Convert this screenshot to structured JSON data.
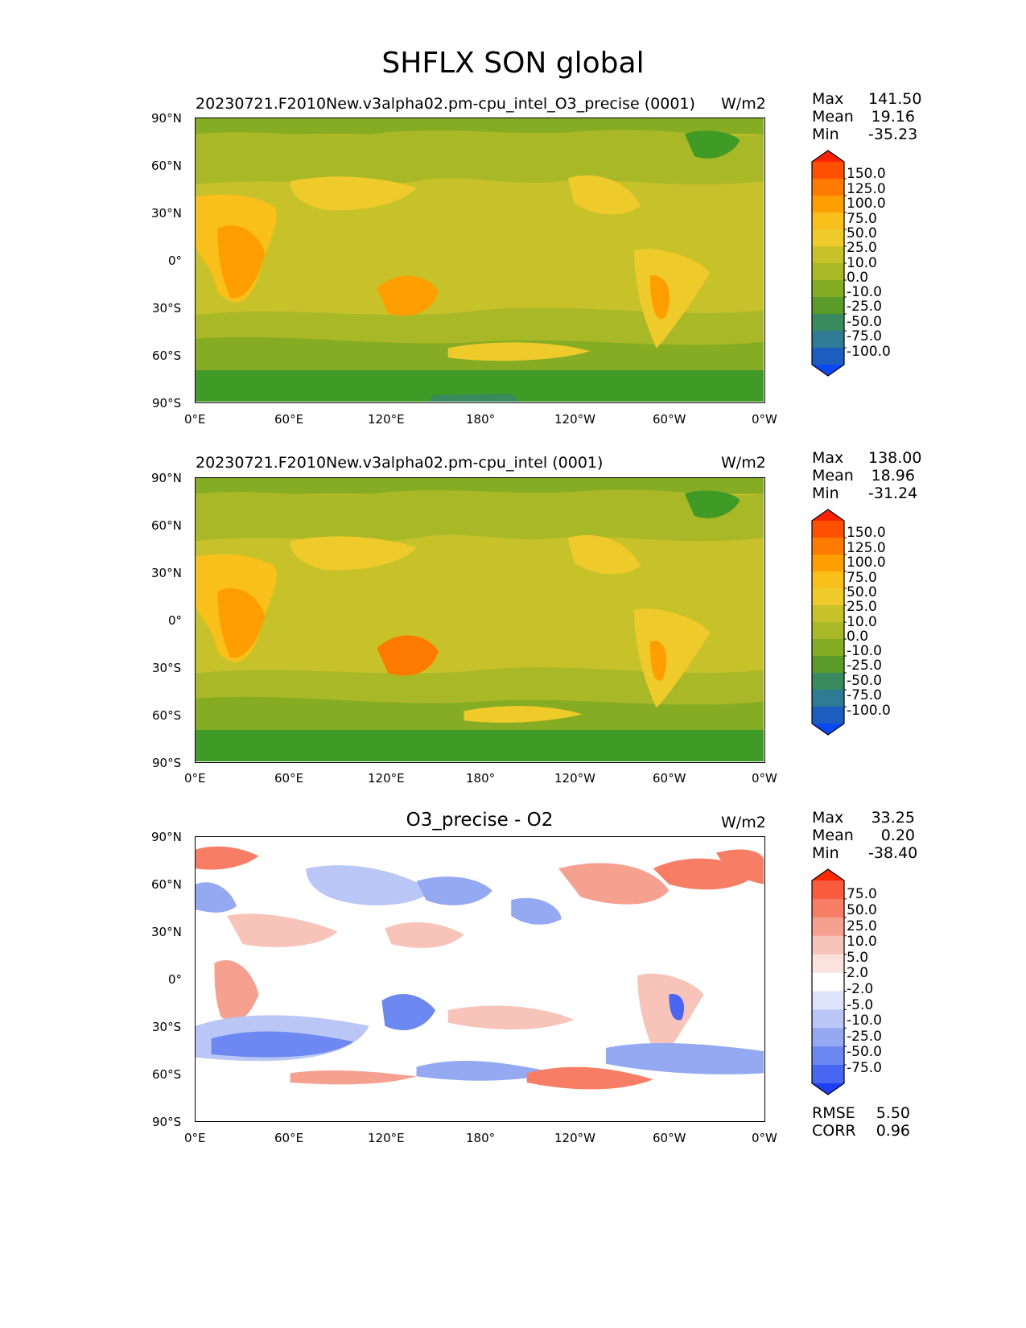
{
  "figure_title": "SHFLX SON global",
  "lat_ticks": [
    "90°N",
    "60°N",
    "30°N",
    "0°",
    "30°S",
    "60°S",
    "90°S"
  ],
  "lon_ticks": [
    "0°E",
    "60°E",
    "120°E",
    "180°",
    "120°W",
    "60°W",
    "0°W"
  ],
  "panels": [
    {
      "title": "20230721.F2010New.v3alpha02.pm-cpu_intel_O3_precise (0001)",
      "units": "W/m2",
      "stats": [
        {
          "name": "Max",
          "value": "141.50"
        },
        {
          "name": "Mean",
          "value": "19.16"
        },
        {
          "name": "Min",
          "value": "-35.23"
        }
      ],
      "colorbar": {
        "labels": [
          "150.0",
          "125.0",
          "100.0",
          "75.0",
          "50.0",
          "25.0",
          "10.0",
          "0.0",
          "-10.0",
          "-25.0",
          "-50.0",
          "-75.0",
          "-100.0"
        ],
        "colors": [
          "#ff2200",
          "#ff4f00",
          "#ff7a00",
          "#ff9e00",
          "#f9bf1a",
          "#eecb2a",
          "#c7c12a",
          "#a9b826",
          "#86ac24",
          "#5a9b2c",
          "#3a8a60",
          "#2f7b96",
          "#1c5ec0",
          "#0b47f2"
        ]
      }
    },
    {
      "title": "20230721.F2010New.v3alpha02.pm-cpu_intel (0001)",
      "units": "W/m2",
      "stats": [
        {
          "name": "Max",
          "value": "138.00"
        },
        {
          "name": "Mean",
          "value": "18.96"
        },
        {
          "name": "Min",
          "value": "-31.24"
        }
      ],
      "colorbar": {
        "labels": [
          "150.0",
          "125.0",
          "100.0",
          "75.0",
          "50.0",
          "25.0",
          "10.0",
          "0.0",
          "-10.0",
          "-25.0",
          "-50.0",
          "-75.0",
          "-100.0"
        ],
        "colors": [
          "#ff2200",
          "#ff4f00",
          "#ff7a00",
          "#ff9e00",
          "#f9bf1a",
          "#eecb2a",
          "#c7c12a",
          "#a9b826",
          "#86ac24",
          "#5a9b2c",
          "#3a8a60",
          "#2f7b96",
          "#1c5ec0",
          "#0b47f2"
        ]
      }
    },
    {
      "title": "O3_precise - O2",
      "units": "W/m2",
      "stats": [
        {
          "name": "Max",
          "value": "33.25"
        },
        {
          "name": "Mean",
          "value": "0.20"
        },
        {
          "name": "Min",
          "value": "-38.40"
        }
      ],
      "extra_stats": [
        {
          "name": "RMSE",
          "value": "5.50"
        },
        {
          "name": "CORR",
          "value": "0.96"
        }
      ],
      "colorbar": {
        "labels": [
          "75.0",
          "50.0",
          "25.0",
          "10.0",
          "5.0",
          "2.0",
          "-2.0",
          "-5.0",
          "-10.0",
          "-25.0",
          "-50.0",
          "-75.0"
        ],
        "colors": [
          "#ff2a00",
          "#fb5a3c",
          "#f77e64",
          "#f6a090",
          "#f8c3b8",
          "#fbe2dd",
          "#ffffff",
          "#dde3fb",
          "#b9c6f6",
          "#95a9f3",
          "#6e88f1",
          "#4766f2",
          "#1e3ef7"
        ]
      }
    }
  ]
}
